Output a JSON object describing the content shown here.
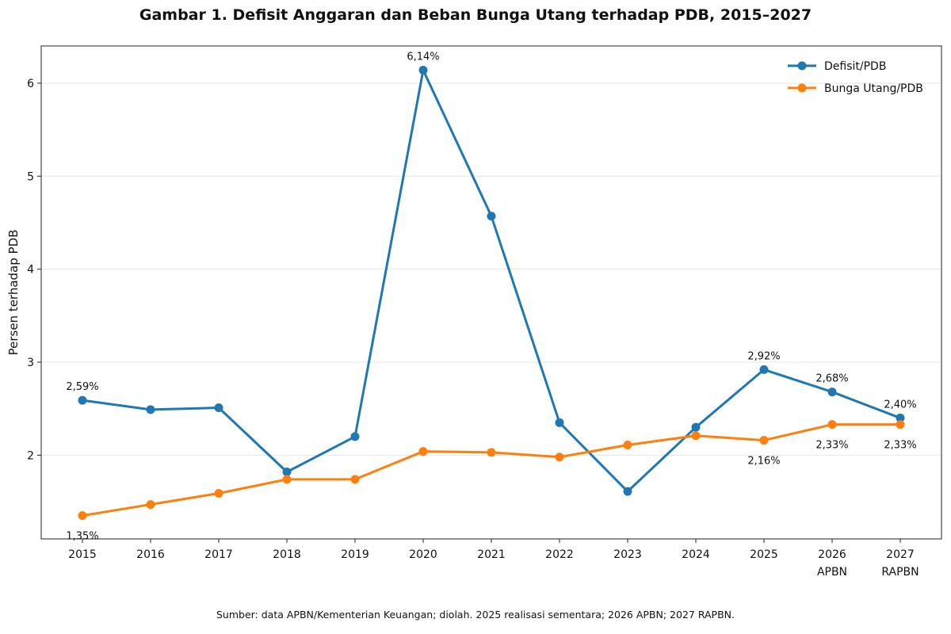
{
  "colors": {
    "defisit": "#1f77b4",
    "bunga": "#ff7f0e"
  },
  "chart_data": {
    "type": "line",
    "title": "Gambar 1. Defisit Anggaran dan Beban Bunga Utang terhadap PDB, 2015–2027",
    "xlabel": "",
    "ylabel": "Persen terhadap PDB",
    "categories": [
      {
        "year": "2015",
        "sub": ""
      },
      {
        "year": "2016",
        "sub": ""
      },
      {
        "year": "2017",
        "sub": ""
      },
      {
        "year": "2018",
        "sub": ""
      },
      {
        "year": "2019",
        "sub": ""
      },
      {
        "year": "2020",
        "sub": ""
      },
      {
        "year": "2021",
        "sub": ""
      },
      {
        "year": "2022",
        "sub": ""
      },
      {
        "year": "2023",
        "sub": ""
      },
      {
        "year": "2024",
        "sub": ""
      },
      {
        "year": "2025",
        "sub": ""
      },
      {
        "year": "2026",
        "sub": "APBN"
      },
      {
        "year": "2027",
        "sub": "RAPBN"
      }
    ],
    "ylim": [
      1.1,
      6.4
    ],
    "yticks": [
      2,
      3,
      4,
      5,
      6
    ],
    "grid": "horizontal",
    "legend_position": "top-right",
    "series": [
      {
        "name": "Defisit/PDB",
        "key": "defisit",
        "values": [
          2.59,
          2.49,
          2.51,
          1.82,
          2.2,
          6.14,
          4.57,
          2.35,
          1.61,
          2.3,
          2.92,
          2.68,
          2.4
        ],
        "labels": [
          {
            "index": 0,
            "text": "2,59%"
          },
          {
            "index": 5,
            "text": "6,14%"
          },
          {
            "index": 10,
            "text": "2,92%"
          },
          {
            "index": 11,
            "text": "2,68%"
          },
          {
            "index": 12,
            "text": "2,40%"
          }
        ]
      },
      {
        "name": "Bunga Utang/PDB",
        "key": "bunga",
        "values": [
          1.35,
          1.47,
          1.59,
          1.74,
          1.74,
          2.04,
          2.03,
          1.98,
          2.11,
          2.21,
          2.16,
          2.33,
          2.33
        ],
        "labels": [
          {
            "index": 0,
            "text": "1,35%"
          },
          {
            "index": 10,
            "text": "2,16%"
          },
          {
            "index": 11,
            "text": "2,33%"
          },
          {
            "index": 12,
            "text": "2,33%"
          }
        ]
      }
    ]
  },
  "footer": {
    "source": "Sumber: data APBN/Kementerian Keuangan; diolah. 2025 realisasi sementara; 2026 APBN; 2027 RAPBN."
  }
}
